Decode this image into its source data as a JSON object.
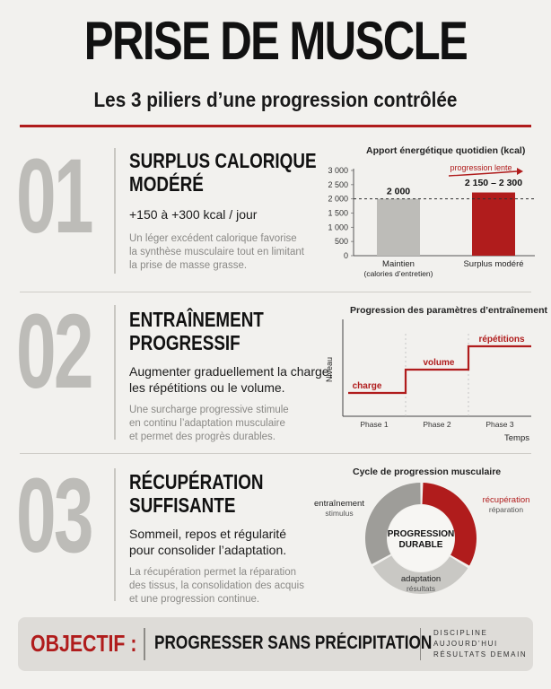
{
  "header": {
    "title": "PRISE DE MUSCLE",
    "subtitle": "Les 3 piliers d’une progression contrôlée"
  },
  "sections": [
    {
      "number": "01",
      "heading_lines": [
        "SURPLUS CALORIQUE",
        "MODÉRÉ"
      ],
      "lead_lines": [
        "+150 à +300 kcal / jour"
      ],
      "body_lines": [
        "Un léger excédent calorique favorise",
        "la synthèse musculaire tout en limitant",
        "la prise de masse grasse."
      ]
    },
    {
      "number": "02",
      "heading_lines": [
        "ENTRAÎNEMENT",
        "PROGRESSIF"
      ],
      "lead_lines": [
        "Augmenter graduellement la charge,",
        "les répétitions ou le volume."
      ],
      "body_lines": [
        "Une surcharge progressive stimule",
        "en continu l’adaptation musculaire",
        "et permet des progrès durables."
      ]
    },
    {
      "number": "03",
      "heading_lines": [
        "RÉCUPÉRATION",
        "SUFFISANTE"
      ],
      "lead_lines": [
        "Sommeil, repos et régularité",
        "pour consolider l’adaptation."
      ],
      "body_lines": [
        "La récupération permet la réparation",
        "des tissus, la consolidation des acquis",
        "et une progression continue."
      ]
    }
  ],
  "chart_data": [
    {
      "type": "bar",
      "title": "Apport énergétique quotidien (kcal)",
      "categories": [
        "Maintien\n(calories d’entretien)",
        "Surplus modéré"
      ],
      "category_lines": [
        [
          "Maintien",
          "(calories d’entretien)"
        ],
        [
          "Surplus modéré"
        ]
      ],
      "values": [
        2000,
        2225
      ],
      "value_labels": [
        "2 000",
        "2 150 – 2 300"
      ],
      "ylim": [
        0,
        3000
      ],
      "yticks": [
        0,
        500,
        1000,
        1500,
        2000,
        2500,
        3000
      ],
      "ytick_labels": [
        "0",
        "500",
        "1 000",
        "1 500",
        "2 000",
        "2 500",
        "3 000"
      ],
      "reference_line": 2000,
      "annotation": "progression lente",
      "colors": [
        "#bdbcb8",
        "#b01c1c"
      ]
    },
    {
      "type": "line",
      "title": "Progression des paramètres d’entraînement",
      "x": [
        "Phase 1",
        "Phase 2",
        "Phase 3"
      ],
      "values": [
        1,
        2,
        3
      ],
      "step_labels": [
        "charge",
        "volume",
        "répétitions"
      ],
      "xlabel": "Temps",
      "ylabel": "Niveau",
      "color": "#b01c1c"
    },
    {
      "type": "pie",
      "title": "Cycle de progression musculaire",
      "center_lines": [
        "PROGRESSION",
        "DURABLE"
      ],
      "slices": [
        {
          "label": "récupération",
          "sublabel": "réparation",
          "value": 1,
          "color": "#b01c1c"
        },
        {
          "label": "adaptation",
          "sublabel": "résultats",
          "value": 1,
          "color": "#c9c8c4"
        },
        {
          "label": "entraînement",
          "sublabel": "stimulus",
          "value": 1,
          "color": "#9e9d99"
        }
      ]
    }
  ],
  "objective": {
    "label": "OBJECTIF :",
    "text": "PROGRESSER SANS PRÉCIPITATION",
    "tagline": [
      "DISCIPLINE",
      "AUJOURD’HUI",
      "RÉSULTATS DEMAIN"
    ]
  },
  "colors": {
    "accent": "#b01c1c",
    "grey": "#bdbcb8",
    "background": "#f2f1ee"
  }
}
